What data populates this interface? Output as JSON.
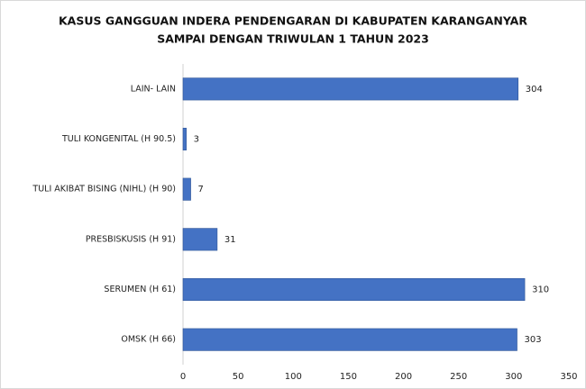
{
  "chart_data": {
    "type": "bar",
    "orientation": "horizontal",
    "title": [
      "KASUS GANGGUAN INDERA PENDENGARAN DI KABUPATEN KARANGANYAR",
      "SAMPAI DENGAN TRIWULAN 1 TAHUN 2023"
    ],
    "categories": [
      "LAIN- LAIN",
      "TULI KONGENITAL (H 90.5)",
      "TULI AKIBAT BISING (NIHL) (H 90)",
      "PRESBISKUSIS (H 91)",
      "SERUMEN (H 61)",
      "OMSK (H 66)"
    ],
    "values": [
      304,
      3,
      7,
      31,
      310,
      303
    ],
    "color": "#4472c4",
    "xlim": [
      0,
      350
    ],
    "xticks": [
      0,
      50,
      100,
      150,
      200,
      250,
      300,
      350
    ],
    "grid": false
  }
}
